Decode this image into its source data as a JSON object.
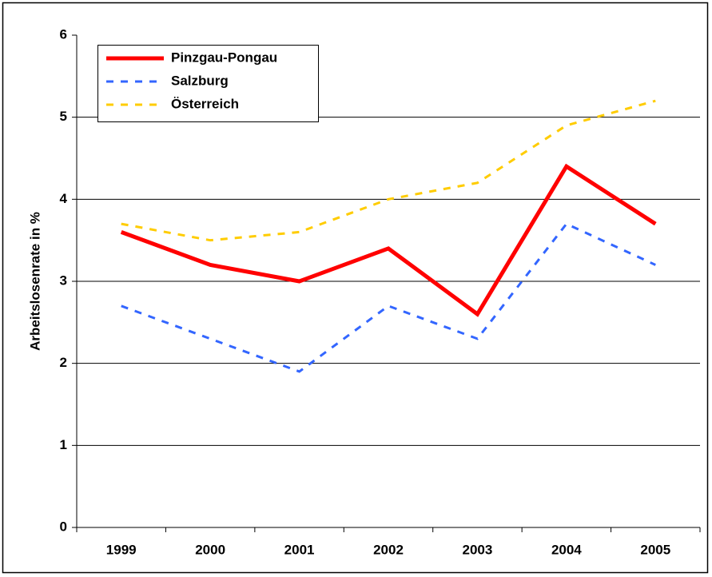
{
  "chart_data": {
    "type": "line",
    "ylabel": "Arbeitslosenrate in %",
    "categories": [
      "1999",
      "2000",
      "2001",
      "2002",
      "2003",
      "2004",
      "2005"
    ],
    "series": [
      {
        "name": "Pinzgau-Pongau",
        "color": "#ff0000",
        "dashed": false,
        "values": [
          3.6,
          3.2,
          3.0,
          3.4,
          2.6,
          4.4,
          3.7
        ]
      },
      {
        "name": "Salzburg",
        "color": "#3366ff",
        "dashed": true,
        "values": [
          2.7,
          2.3,
          1.9,
          2.7,
          2.3,
          3.7,
          3.2
        ]
      },
      {
        "name": "Österreich",
        "color": "#ffcc00",
        "dashed": true,
        "values": [
          3.7,
          3.5,
          3.6,
          4.0,
          4.2,
          4.9,
          5.2
        ]
      }
    ],
    "ylim": [
      0,
      6
    ],
    "yticks": [
      0,
      1,
      2,
      3,
      4,
      5,
      6
    ],
    "grid": true,
    "legend": "upper left"
  }
}
